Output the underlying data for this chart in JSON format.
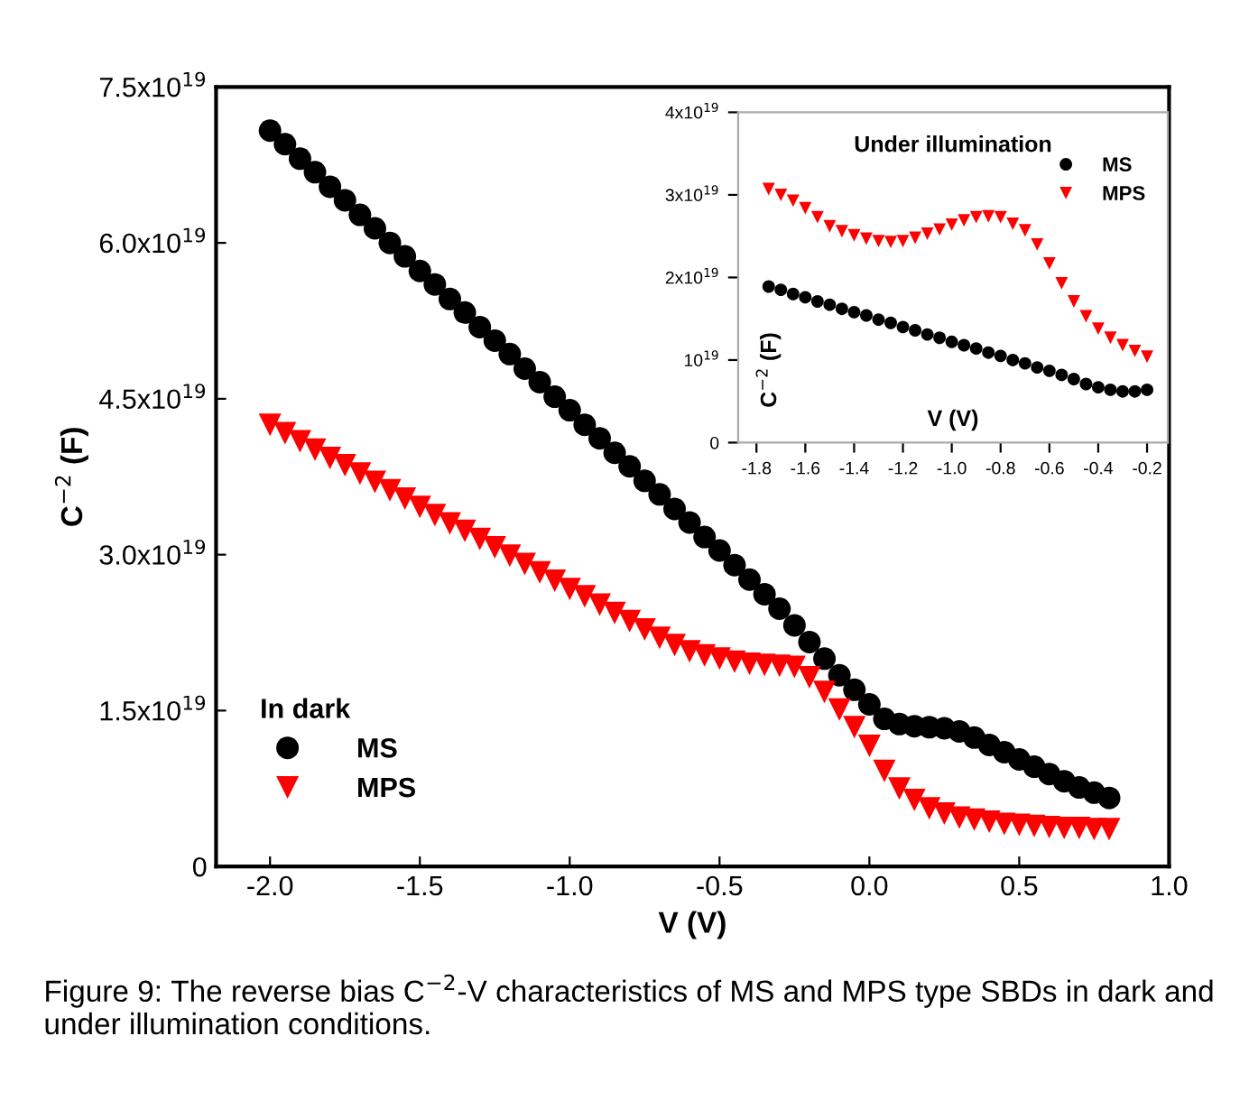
{
  "chart_data": [
    {
      "type": "scatter",
      "xlabel": "V (V)",
      "ylabel": "C$^{−2}$ (F)",
      "legend_title": "In dark",
      "legend": "bottom left",
      "grid": false,
      "x": [
        -2.0,
        -1.95,
        -1.9,
        -1.85,
        -1.8,
        -1.75,
        -1.7,
        -1.65,
        -1.6,
        -1.55,
        -1.5,
        -1.45,
        -1.4,
        -1.35,
        -1.3,
        -1.25,
        -1.2,
        -1.15,
        -1.1,
        -1.05,
        -1.0,
        -0.95,
        -0.9,
        -0.85,
        -0.8,
        -0.75,
        -0.7,
        -0.65,
        -0.6,
        -0.55,
        -0.5,
        -0.45,
        -0.4,
        -0.35,
        -0.3,
        -0.25,
        -0.2,
        -0.15,
        -0.1,
        -0.05,
        0.0,
        0.05,
        0.1,
        0.15,
        0.2,
        0.25,
        0.3,
        0.35,
        0.4,
        0.45,
        0.5,
        0.55,
        0.6,
        0.65,
        0.7,
        0.75,
        0.8
      ],
      "series": [
        {
          "name": "MS",
          "color": "#000000",
          "marker": "circle",
          "values": [
            7.08e+19,
            6.95e+19,
            6.81e+19,
            6.68e+19,
            6.54e+19,
            6.41e+19,
            6.27e+19,
            6.14e+19,
            6e+19,
            5.87e+19,
            5.73e+19,
            5.6e+19,
            5.46e+19,
            5.33e+19,
            5.19e+19,
            5.06e+19,
            4.93e+19,
            4.79e+19,
            4.66e+19,
            4.52e+19,
            4.39e+19,
            4.25e+19,
            4.12e+19,
            3.98e+19,
            3.85e+19,
            3.71e+19,
            3.58e+19,
            3.44e+19,
            3.31e+19,
            3.17e+19,
            3.04e+19,
            2.9e+19,
            2.76e+19,
            2.62e+19,
            2.48e+19,
            2.32e+19,
            2.16e+19,
            2e+19,
            1.84e+19,
            1.7e+19,
            1.56e+19,
            1.42e+19,
            1.37e+19,
            1.35e+19,
            1.34e+19,
            1.33e+19,
            1.3e+19,
            1.24e+19,
            1.17e+19,
            1.1e+19,
            1.03e+19,
            9.6e+18,
            8.9e+18,
            8.2e+18,
            7.6e+18,
            7.1e+18,
            6.6e+18
          ]
        },
        {
          "name": "MPS",
          "color": "#ff0000",
          "marker": "triangle",
          "values": [
            4.25e+19,
            4.17e+19,
            4.09e+19,
            4.01e+19,
            3.93e+19,
            3.86e+19,
            3.78e+19,
            3.7e+19,
            3.62e+19,
            3.54e+19,
            3.46e+19,
            3.38e+19,
            3.3e+19,
            3.23e+19,
            3.15e+19,
            3.07e+19,
            2.99e+19,
            2.91e+19,
            2.83e+19,
            2.75e+19,
            2.67e+19,
            2.6e+19,
            2.52e+19,
            2.44e+19,
            2.36e+19,
            2.28e+19,
            2.2e+19,
            2.13e+19,
            2.07e+19,
            2.03e+19,
            2e+19,
            1.97e+19,
            1.95e+19,
            1.94e+19,
            1.93e+19,
            1.92e+19,
            1.82e+19,
            1.68e+19,
            1.51e+19,
            1.34e+19,
            1.16e+19,
            9.2e+18,
            7.5e+18,
            6.4e+18,
            5.6e+18,
            5.1e+18,
            4.7e+18,
            4.5e+18,
            4.3e+18,
            4.1e+18,
            4e+18,
            3.9e+18,
            3.8e+18,
            3.7e+18,
            3.7e+18,
            3.6e+18,
            3.6e+18
          ]
        }
      ],
      "xlim": [
        -2.18,
        1.0
      ],
      "xticks": [
        {
          "value": -2.0,
          "label": "-2.0"
        },
        {
          "value": -1.5,
          "label": "-1.5"
        },
        {
          "value": -1.0,
          "label": "-1.0"
        },
        {
          "value": -0.5,
          "label": "-0.5"
        },
        {
          "value": 0.0,
          "label": "0.0"
        },
        {
          "value": 0.5,
          "label": "0.5"
        },
        {
          "value": 1.0,
          "label": "1.0"
        }
      ],
      "ylim": [
        0,
        7.5e+19
      ],
      "yticks": [
        {
          "value": 0,
          "label": "0"
        },
        {
          "value": 1.5e+19,
          "label": "1.5x10$^{19}$"
        },
        {
          "value": 3e+19,
          "label": "3.0x10$^{19}$"
        },
        {
          "value": 4.5e+19,
          "label": "4.5x10$^{19}$"
        },
        {
          "value": 6e+19,
          "label": "6.0x10$^{19}$"
        },
        {
          "value": 7.5e+19,
          "label": "7.5x10$^{19}$"
        }
      ],
      "annotations": [
        "Figure 9: The reverse bias C$^{−2}$-V characteristics of MS and MPS type SBDs in dark and under illumination conditions."
      ]
    },
    {
      "type": "scatter",
      "title": "Under illumination",
      "xlabel": "V (V)",
      "ylabel": "C$^{−2}$ (F)",
      "legend": "top right",
      "grid": false,
      "x": [
        -1.75,
        -1.7,
        -1.65,
        -1.6,
        -1.55,
        -1.5,
        -1.45,
        -1.4,
        -1.35,
        -1.3,
        -1.25,
        -1.2,
        -1.15,
        -1.1,
        -1.05,
        -1.0,
        -0.95,
        -0.9,
        -0.85,
        -0.8,
        -0.75,
        -0.7,
        -0.65,
        -0.6,
        -0.55,
        -0.5,
        -0.45,
        -0.4,
        -0.35,
        -0.3,
        -0.25,
        -0.2
      ],
      "series": [
        {
          "name": "MS",
          "color": "#000000",
          "marker": "circle",
          "values": [
            1.89e+19,
            1.85e+19,
            1.8e+19,
            1.76e+19,
            1.71e+19,
            1.67e+19,
            1.62e+19,
            1.58e+19,
            1.54e+19,
            1.49e+19,
            1.45e+19,
            1.4e+19,
            1.36e+19,
            1.31e+19,
            1.27e+19,
            1.22e+19,
            1.18e+19,
            1.14e+19,
            1.09e+19,
            1.05e+19,
            1e+19,
            9.6e+18,
            9.1e+18,
            8.7e+18,
            8.2e+18,
            7.7e+18,
            7.1e+18,
            6.7e+18,
            6.4e+18,
            6.2e+18,
            6.2e+18,
            6.4e+18
          ]
        },
        {
          "name": "MPS",
          "color": "#ff0000",
          "marker": "triangle",
          "values": [
            3.07e+19,
            3e+19,
            2.93e+19,
            2.84e+19,
            2.73e+19,
            2.62e+19,
            2.56e+19,
            2.51e+19,
            2.47e+19,
            2.44e+19,
            2.43e+19,
            2.44e+19,
            2.48e+19,
            2.53e+19,
            2.58e+19,
            2.64e+19,
            2.69e+19,
            2.73e+19,
            2.74e+19,
            2.73e+19,
            2.65e+19,
            2.57e+19,
            2.4e+19,
            2.17e+19,
            1.93e+19,
            1.71e+19,
            1.53e+19,
            1.38e+19,
            1.27e+19,
            1.18e+19,
            1.11e+19,
            1.04e+19
          ]
        }
      ],
      "xlim": [
        -1.875,
        -0.115
      ],
      "xticks": [
        {
          "value": -1.8,
          "label": "-1.8"
        },
        {
          "value": -1.6,
          "label": "-1.6"
        },
        {
          "value": -1.4,
          "label": "-1.4"
        },
        {
          "value": -1.2,
          "label": "-1.2"
        },
        {
          "value": -1.0,
          "label": "-1.0"
        },
        {
          "value": -0.8,
          "label": "-0.8"
        },
        {
          "value": -0.6,
          "label": "-0.6"
        },
        {
          "value": -0.4,
          "label": "-0.4"
        },
        {
          "value": -0.2,
          "label": "-0.2"
        }
      ],
      "ylim": [
        0,
        4e+19
      ],
      "yticks": [
        {
          "value": 0,
          "label": "0"
        },
        {
          "value": 1e+19,
          "label": "10$^{19}$"
        },
        {
          "value": 2e+19,
          "label": "2x10$^{19}$"
        },
        {
          "value": 3e+19,
          "label": "3x10$^{19}$"
        },
        {
          "value": 4e+19,
          "label": "4x10$^{19}$"
        }
      ]
    }
  ]
}
